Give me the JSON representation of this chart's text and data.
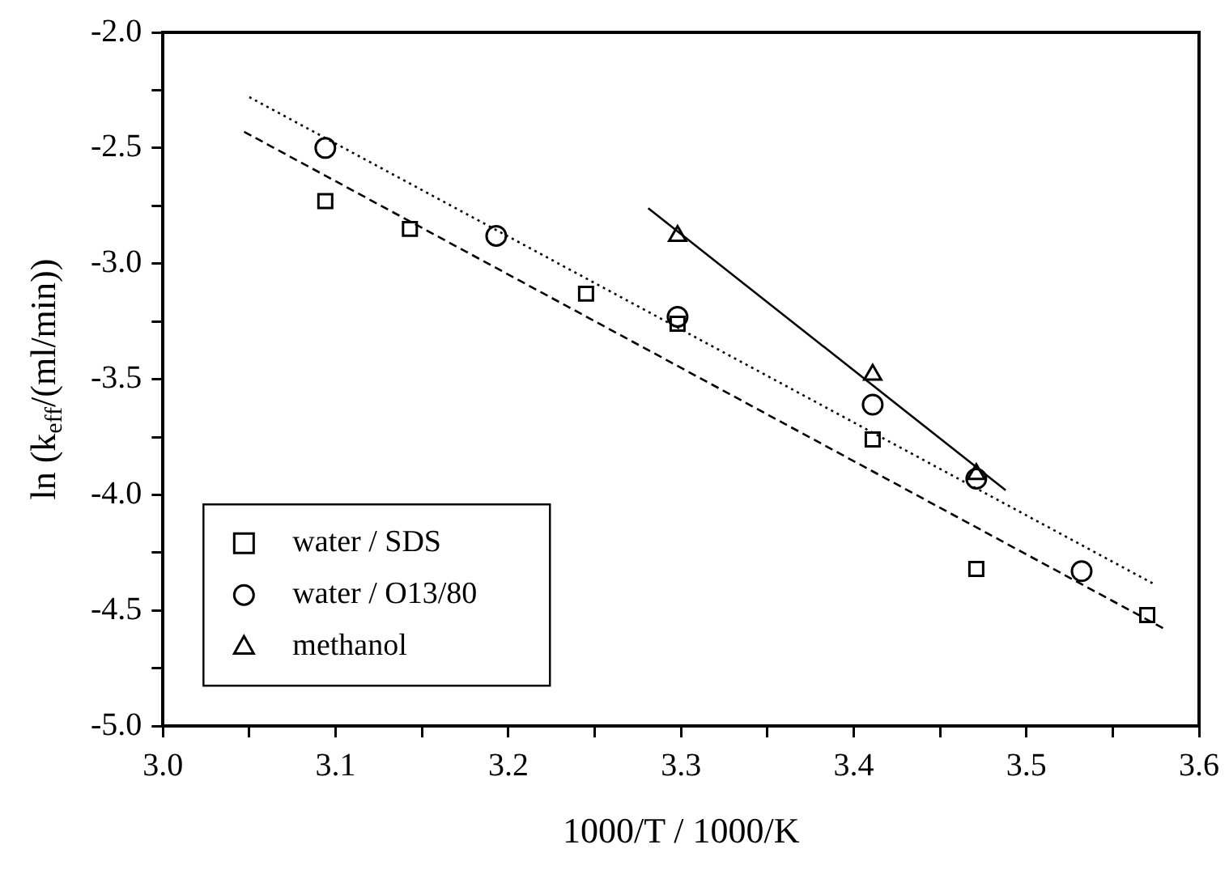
{
  "chart_data": {
    "type": "scatter",
    "xlabel": "1000/T / 1000/K",
    "ylabel": "ln (k$_{eff}$/(ml/min))",
    "xlim": [
      3.0,
      3.6
    ],
    "xticks": [
      {
        "value": 3.0,
        "label": "3.0"
      },
      {
        "value": 3.05,
        "label": null
      },
      {
        "value": 3.1,
        "label": "3.1"
      },
      {
        "value": 3.15,
        "label": null
      },
      {
        "value": 3.2,
        "label": "3.2"
      },
      {
        "value": 3.25,
        "label": null
      },
      {
        "value": 3.3,
        "label": "3.3"
      },
      {
        "value": 3.35,
        "label": null
      },
      {
        "value": 3.4,
        "label": "3.4"
      },
      {
        "value": 3.45,
        "label": null
      },
      {
        "value": 3.5,
        "label": "3.5"
      },
      {
        "value": 3.55,
        "label": null
      },
      {
        "value": 3.6,
        "label": "3.6"
      }
    ],
    "ylim": [
      -5.0,
      -2.0
    ],
    "yticks": [
      {
        "value": -5.0,
        "label": "-5.0"
      },
      {
        "value": -4.75,
        "label": null
      },
      {
        "value": -4.5,
        "label": "-4.5"
      },
      {
        "value": -4.25,
        "label": null
      },
      {
        "value": -4.0,
        "label": "-4.0"
      },
      {
        "value": -3.75,
        "label": null
      },
      {
        "value": -3.5,
        "label": "-3.5"
      },
      {
        "value": -3.25,
        "label": null
      },
      {
        "value": -3.0,
        "label": "-3.0"
      },
      {
        "value": -2.75,
        "label": null
      },
      {
        "value": -2.5,
        "label": "-2.5"
      },
      {
        "value": -2.25,
        "label": null
      },
      {
        "value": -2.0,
        "label": "-2.0"
      }
    ],
    "grid": false,
    "legend": "bottom left",
    "series": [
      {
        "name": "water / SDS",
        "type": "scatter",
        "marker": "square",
        "color": "#000000",
        "x": [
          3.094,
          3.143,
          3.245,
          3.298,
          3.411,
          3.471,
          3.57
        ],
        "values": [
          -2.73,
          -2.85,
          -3.13,
          -3.26,
          -3.76,
          -4.32,
          -4.52
        ]
      },
      {
        "name": "water / O13/80",
        "type": "scatter",
        "marker": "circle",
        "color": "#000000",
        "x": [
          3.094,
          3.193,
          3.298,
          3.411,
          3.471,
          3.532
        ],
        "values": [
          -2.5,
          -2.88,
          -3.23,
          -3.61,
          -3.93,
          -4.33
        ]
      },
      {
        "name": "methanol",
        "type": "scatter",
        "marker": "triangle",
        "color": "#000000",
        "x": [
          3.298,
          3.411,
          3.471
        ],
        "values": [
          -2.88,
          -3.48,
          -3.91
        ]
      },
      {
        "type": "line",
        "marker": "none",
        "line_style": "dotted",
        "color": "#000000",
        "x": [
          3.05,
          3.575
        ],
        "values": [
          -2.28,
          -4.39
        ]
      },
      {
        "type": "line",
        "marker": "none",
        "line_style": "dashed",
        "color": "#000000",
        "x": [
          3.047,
          3.58
        ],
        "values": [
          -2.43,
          -4.58
        ]
      },
      {
        "type": "line",
        "marker": "none",
        "line_style": "solid",
        "color": "#000000",
        "x": [
          3.281,
          3.488
        ],
        "values": [
          -2.76,
          -3.98
        ]
      }
    ]
  }
}
